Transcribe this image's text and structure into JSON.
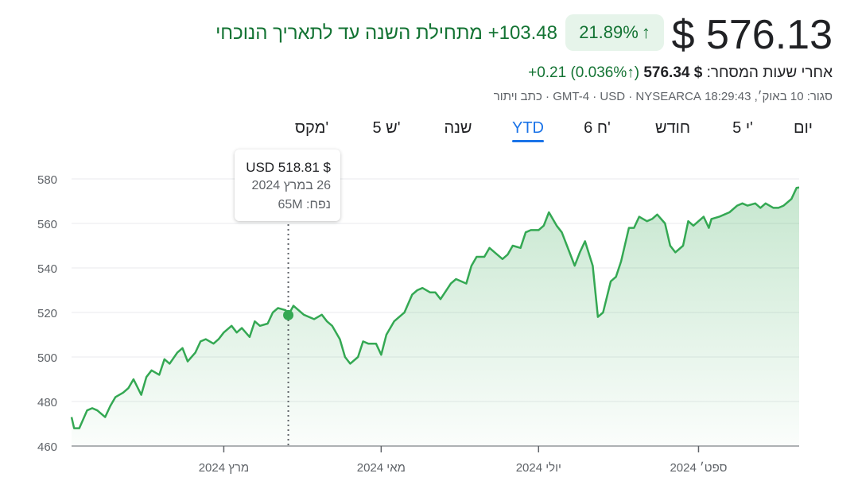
{
  "header": {
    "price": "$ 576.13",
    "change_percent": "21.89%",
    "change_arrow": "↑",
    "ytd_text": "‎+103.48 מתחילת השנה עד לתאריך הנוכחי",
    "after_hours_label": "אחרי שעות המסחר:",
    "after_hours_price": "$ 576.34",
    "after_hours_pct": "(↑0.036%)",
    "after_hours_change": "‎+0.21",
    "meta": "סגור: 10 באוק׳, 18:29:43 GMT-4 · USD · NYSEARCA · כתב ויתור"
  },
  "tabs": [
    "יום",
    "5 י'",
    "חודש",
    "6 ח'",
    "YTD",
    "שנה",
    "5 ש'",
    "מקס'"
  ],
  "active_tab": "YTD",
  "tooltip": {
    "price": "$ USD 518.81",
    "date": "26 במרץ 2024",
    "volume": "נפח: 65M"
  },
  "colors": {
    "line": "#34a853",
    "positive_text": "#137333",
    "badge_bg": "#e6f4ea",
    "active_tab": "#1a73e8"
  },
  "chart_data": {
    "type": "area",
    "ylim": [
      460,
      580
    ],
    "yticks": [
      460,
      480,
      500,
      520,
      540,
      560,
      580
    ],
    "x_tick_labels": [
      "מרץ 2024",
      "מאי 2024",
      "יולי 2024",
      "ספט׳ 2024"
    ],
    "x_tick_dates": [
      "2024-03-01",
      "2024-05-01",
      "2024-07-01",
      "2024-09-01"
    ],
    "x_start": "2024-01-02",
    "x_end": "2024-10-10",
    "grid": true,
    "highlight": {
      "x": "2024-03-26",
      "y": 518.81
    },
    "series": [
      {
        "x": [
          "2024-01-02",
          "2024-01-03",
          "2024-01-05",
          "2024-01-08",
          "2024-01-10",
          "2024-01-12",
          "2024-01-15",
          "2024-01-17",
          "2024-01-19",
          "2024-01-22",
          "2024-01-24",
          "2024-01-26",
          "2024-01-29",
          "2024-01-31",
          "2024-02-02",
          "2024-02-05",
          "2024-02-07",
          "2024-02-09",
          "2024-02-12",
          "2024-02-14",
          "2024-02-16",
          "2024-02-19",
          "2024-02-21",
          "2024-02-23",
          "2024-02-26",
          "2024-02-28",
          "2024-03-01",
          "2024-03-04",
          "2024-03-06",
          "2024-03-08",
          "2024-03-11",
          "2024-03-13",
          "2024-03-15",
          "2024-03-18",
          "2024-03-20",
          "2024-03-22",
          "2024-03-25",
          "2024-03-26",
          "2024-03-28",
          "2024-04-01",
          "2024-04-03",
          "2024-04-05",
          "2024-04-08",
          "2024-04-10",
          "2024-04-12",
          "2024-04-15",
          "2024-04-17",
          "2024-04-19",
          "2024-04-22",
          "2024-04-24",
          "2024-04-26",
          "2024-04-29",
          "2024-05-01",
          "2024-05-03",
          "2024-05-06",
          "2024-05-08",
          "2024-05-10",
          "2024-05-13",
          "2024-05-15",
          "2024-05-17",
          "2024-05-20",
          "2024-05-22",
          "2024-05-24",
          "2024-05-28",
          "2024-05-30",
          "2024-06-03",
          "2024-06-05",
          "2024-06-07",
          "2024-06-10",
          "2024-06-12",
          "2024-06-14",
          "2024-06-17",
          "2024-06-19",
          "2024-06-21",
          "2024-06-24",
          "2024-06-26",
          "2024-06-28",
          "2024-07-01",
          "2024-07-03",
          "2024-07-05",
          "2024-07-08",
          "2024-07-10",
          "2024-07-12",
          "2024-07-15",
          "2024-07-17",
          "2024-07-19",
          "2024-07-22",
          "2024-07-24",
          "2024-07-26",
          "2024-07-29",
          "2024-07-31",
          "2024-08-02",
          "2024-08-05",
          "2024-08-07",
          "2024-08-09",
          "2024-08-12",
          "2024-08-14",
          "2024-08-16",
          "2024-08-19",
          "2024-08-21",
          "2024-08-23",
          "2024-08-26",
          "2024-08-28",
          "2024-08-30",
          "2024-09-03",
          "2024-09-05",
          "2024-09-06",
          "2024-09-09",
          "2024-09-11",
          "2024-09-13",
          "2024-09-16",
          "2024-09-18",
          "2024-09-20",
          "2024-09-23",
          "2024-09-25",
          "2024-09-27",
          "2024-09-30",
          "2024-10-02",
          "2024-10-04",
          "2024-10-07",
          "2024-10-09",
          "2024-10-10"
        ],
        "y": [
          473,
          468,
          468,
          476,
          477,
          476,
          473,
          478,
          482,
          484,
          486,
          490,
          483,
          491,
          494,
          492,
          499,
          497,
          502,
          504,
          498,
          502,
          507,
          508,
          506,
          508,
          511,
          514,
          511,
          513,
          509,
          516,
          514,
          515,
          520,
          522,
          521,
          518.81,
          523,
          519,
          518,
          517,
          519,
          516,
          514,
          508,
          500,
          497,
          500,
          507,
          506,
          506,
          501,
          510,
          516,
          518,
          520,
          528,
          530,
          531,
          529,
          529,
          526,
          533,
          535,
          533,
          541,
          545,
          545,
          549,
          547,
          544,
          546,
          550,
          549,
          556,
          557,
          557,
          559,
          565,
          559,
          556,
          550,
          541,
          547,
          552,
          541,
          518,
          520,
          534,
          536,
          543,
          558,
          558,
          563,
          561,
          562,
          564,
          560,
          550,
          547,
          550,
          561,
          559,
          563,
          558,
          562,
          563,
          564,
          565,
          568,
          569,
          568,
          569,
          567,
          569,
          567,
          567,
          568,
          571,
          576,
          576.13
        ]
      }
    ]
  }
}
